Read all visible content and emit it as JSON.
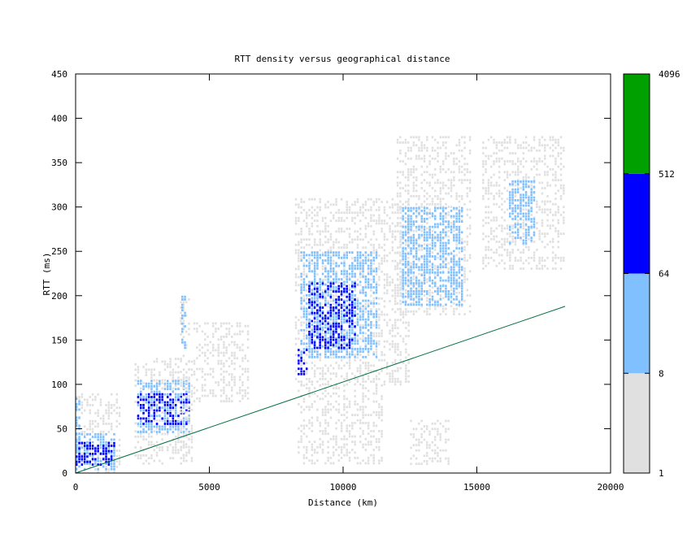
{
  "chart_data": {
    "type": "heatmap",
    "title": "RTT density versus geographical distance",
    "xlabel": "Distance (km)",
    "ylabel": "RTT (ms)",
    "xlim": [
      0,
      20000
    ],
    "ylim": [
      0,
      450
    ],
    "x_ticks": [
      "0",
      "5000",
      "10000",
      "15000",
      "20000"
    ],
    "y_ticks": [
      "0",
      "50",
      "100",
      "150",
      "200",
      "250",
      "300",
      "350",
      "400",
      "450"
    ],
    "grid": false,
    "legend": "colorbar-right",
    "colorbar": {
      "scale": "log2",
      "tick_labels": [
        "1",
        "8",
        "64",
        "512",
        "4096"
      ],
      "bands": [
        {
          "from": 1,
          "to": 8,
          "color": "#e0e0e0"
        },
        {
          "from": 8,
          "to": 64,
          "color": "#80c0ff"
        },
        {
          "from": 64,
          "to": 512,
          "color": "#0000ff"
        },
        {
          "from": 512,
          "to": 4096,
          "color": "#00a000"
        }
      ]
    },
    "reference_line": {
      "color": "#007040",
      "points": [
        [
          0,
          0
        ],
        [
          18300,
          188
        ]
      ]
    },
    "density_clusters": [
      {
        "x": [
          0,
          1700
        ],
        "y": [
          0,
          90
        ],
        "level": 1
      },
      {
        "x": [
          0,
          1500
        ],
        "y": [
          5,
          45
        ],
        "level": 2
      },
      {
        "x": [
          0,
          200
        ],
        "y": [
          10,
          85
        ],
        "level": 2
      },
      {
        "x": [
          0,
          1500
        ],
        "y": [
          10,
          35
        ],
        "level": 3
      },
      {
        "x": [
          2200,
          4400
        ],
        "y": [
          10,
          130
        ],
        "level": 1
      },
      {
        "x": [
          2300,
          4300
        ],
        "y": [
          45,
          105
        ],
        "level": 2
      },
      {
        "x": [
          2300,
          4300
        ],
        "y": [
          55,
          90
        ],
        "level": 3
      },
      {
        "x": [
          3900,
          4300
        ],
        "y": [
          10,
          200
        ],
        "level": 1
      },
      {
        "x": [
          3950,
          4150
        ],
        "y": [
          140,
          200
        ],
        "level": 2
      },
      {
        "x": [
          4400,
          6500
        ],
        "y": [
          80,
          170
        ],
        "level": 1
      },
      {
        "x": [
          8200,
          12500
        ],
        "y": [
          100,
          310
        ],
        "level": 1
      },
      {
        "x": [
          8400,
          11300
        ],
        "y": [
          130,
          250
        ],
        "level": 2
      },
      {
        "x": [
          8300,
          8700
        ],
        "y": [
          110,
          140
        ],
        "level": 3
      },
      {
        "x": [
          8700,
          10500
        ],
        "y": [
          140,
          215
        ],
        "level": 3
      },
      {
        "x": [
          12000,
          14800
        ],
        "y": [
          180,
          380
        ],
        "level": 1
      },
      {
        "x": [
          12200,
          14500
        ],
        "y": [
          190,
          300
        ],
        "level": 2
      },
      {
        "x": [
          15200,
          18300
        ],
        "y": [
          230,
          380
        ],
        "level": 1
      },
      {
        "x": [
          16200,
          17200
        ],
        "y": [
          260,
          330
        ],
        "level": 2
      },
      {
        "x": [
          8300,
          11500
        ],
        "y": [
          10,
          100
        ],
        "level": 1
      },
      {
        "x": [
          12500,
          14000
        ],
        "y": [
          10,
          60
        ],
        "level": 1
      }
    ]
  }
}
